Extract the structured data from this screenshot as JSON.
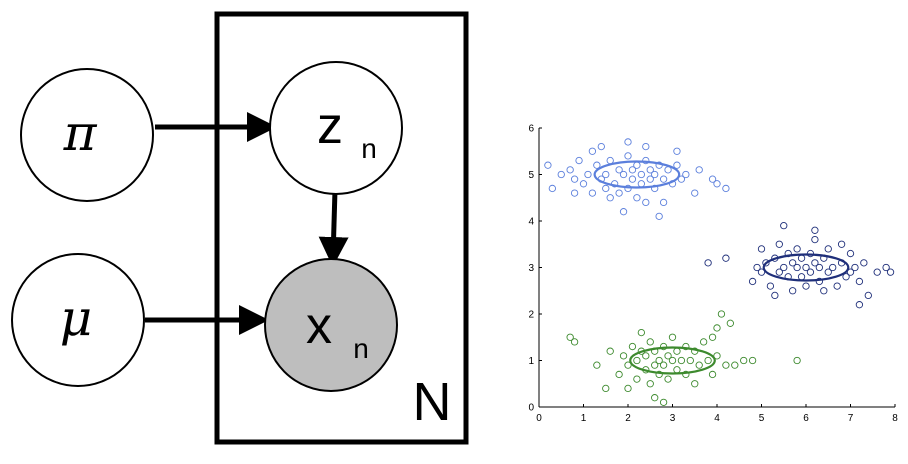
{
  "diagram": {
    "nodes": {
      "pi": {
        "symbol": "π"
      },
      "mu": {
        "symbol": "μ"
      },
      "z": {
        "base": "z",
        "subscript": "n"
      },
      "x": {
        "base": "x",
        "subscript": "n"
      }
    },
    "plate_label": "N",
    "colors": {
      "observed_fill": "#bebebe",
      "stroke": "#000000"
    }
  },
  "chart_data": {
    "type": "scatter",
    "title": "",
    "xlabel": "",
    "ylabel": "",
    "xlim": [
      0,
      8
    ],
    "ylim": [
      0,
      6
    ],
    "xticks": [
      "0",
      "1",
      "2",
      "3",
      "4",
      "5",
      "6",
      "7",
      "8"
    ],
    "yticks": [
      "0",
      "1",
      "2",
      "3",
      "4",
      "5",
      "6"
    ],
    "grid": false,
    "series": [
      {
        "color": "#5b7fdc",
        "ellipse": {
          "cx": 2.2,
          "cy": 5.0,
          "rx": 0.95,
          "ry": 0.28
        },
        "points": [
          [
            0.2,
            5.2
          ],
          [
            0.3,
            4.7
          ],
          [
            0.5,
            5.0
          ],
          [
            0.7,
            5.1
          ],
          [
            0.8,
            4.9
          ],
          [
            0.9,
            5.3
          ],
          [
            1.0,
            4.8
          ],
          [
            1.1,
            5.0
          ],
          [
            1.2,
            4.6
          ],
          [
            1.3,
            5.2
          ],
          [
            1.4,
            4.9
          ],
          [
            1.5,
            5.0
          ],
          [
            1.5,
            4.7
          ],
          [
            1.6,
            5.3
          ],
          [
            1.7,
            4.8
          ],
          [
            1.8,
            5.1
          ],
          [
            1.8,
            4.6
          ],
          [
            1.9,
            5.0
          ],
          [
            2.0,
            5.4
          ],
          [
            2.0,
            4.7
          ],
          [
            2.1,
            5.1
          ],
          [
            2.1,
            4.9
          ],
          [
            2.2,
            5.2
          ],
          [
            2.2,
            4.5
          ],
          [
            2.3,
            5.0
          ],
          [
            2.3,
            4.8
          ],
          [
            2.4,
            5.3
          ],
          [
            2.4,
            4.4
          ],
          [
            2.5,
            5.1
          ],
          [
            2.5,
            4.9
          ],
          [
            2.6,
            5.0
          ],
          [
            2.6,
            4.7
          ],
          [
            2.7,
            5.2
          ],
          [
            2.8,
            4.9
          ],
          [
            2.8,
            4.4
          ],
          [
            2.9,
            5.1
          ],
          [
            3.0,
            4.8
          ],
          [
            3.1,
            5.2
          ],
          [
            3.2,
            4.9
          ],
          [
            3.3,
            5.0
          ],
          [
            3.5,
            4.6
          ],
          [
            1.4,
            5.6
          ],
          [
            2.0,
            5.7
          ],
          [
            3.1,
            5.5
          ],
          [
            2.7,
            4.1
          ],
          [
            1.9,
            4.2
          ],
          [
            4.0,
            4.8
          ],
          [
            4.2,
            4.7
          ],
          [
            3.9,
            4.9
          ],
          [
            1.2,
            5.5
          ],
          [
            0.8,
            4.6
          ],
          [
            2.4,
            5.6
          ],
          [
            1.6,
            4.5
          ],
          [
            3.6,
            5.1
          ]
        ]
      },
      {
        "color": "#1f2f7a",
        "ellipse": {
          "cx": 6.0,
          "cy": 3.0,
          "rx": 0.95,
          "ry": 0.28
        },
        "points": [
          [
            3.8,
            3.1
          ],
          [
            4.2,
            3.2
          ],
          [
            4.8,
            2.7
          ],
          [
            5.0,
            3.4
          ],
          [
            5.0,
            2.9
          ],
          [
            5.1,
            3.1
          ],
          [
            5.2,
            2.6
          ],
          [
            5.3,
            3.2
          ],
          [
            5.4,
            2.9
          ],
          [
            5.4,
            3.5
          ],
          [
            5.5,
            3.0
          ],
          [
            5.6,
            2.8
          ],
          [
            5.6,
            3.3
          ],
          [
            5.7,
            3.1
          ],
          [
            5.7,
            2.5
          ],
          [
            5.8,
            3.0
          ],
          [
            5.8,
            3.4
          ],
          [
            5.9,
            2.8
          ],
          [
            5.9,
            3.2
          ],
          [
            6.0,
            3.0
          ],
          [
            6.0,
            2.6
          ],
          [
            6.1,
            3.3
          ],
          [
            6.1,
            2.9
          ],
          [
            6.2,
            3.1
          ],
          [
            6.2,
            3.6
          ],
          [
            6.3,
            2.7
          ],
          [
            6.3,
            3.0
          ],
          [
            6.4,
            3.2
          ],
          [
            6.5,
            2.9
          ],
          [
            6.5,
            3.4
          ],
          [
            6.6,
            3.0
          ],
          [
            6.7,
            2.6
          ],
          [
            6.8,
            3.1
          ],
          [
            6.9,
            2.8
          ],
          [
            7.0,
            3.3
          ],
          [
            7.0,
            2.9
          ],
          [
            7.1,
            3.0
          ],
          [
            7.2,
            2.7
          ],
          [
            7.3,
            3.1
          ],
          [
            7.4,
            2.4
          ],
          [
            7.6,
            2.9
          ],
          [
            7.8,
            3.0
          ],
          [
            7.9,
            2.9
          ],
          [
            5.5,
            3.9
          ],
          [
            6.2,
            3.8
          ],
          [
            7.2,
            2.2
          ],
          [
            5.3,
            2.4
          ],
          [
            6.8,
            3.5
          ],
          [
            4.9,
            3.0
          ],
          [
            6.4,
            2.5
          ]
        ]
      },
      {
        "color": "#3d8a2e",
        "ellipse": {
          "cx": 3.0,
          "cy": 1.0,
          "rx": 0.95,
          "ry": 0.28
        },
        "points": [
          [
            0.7,
            1.5
          ],
          [
            0.8,
            1.4
          ],
          [
            1.3,
            0.9
          ],
          [
            1.6,
            1.2
          ],
          [
            1.8,
            0.7
          ],
          [
            1.9,
            1.1
          ],
          [
            2.0,
            0.9
          ],
          [
            2.1,
            1.3
          ],
          [
            2.2,
            0.6
          ],
          [
            2.2,
            1.0
          ],
          [
            2.3,
            1.2
          ],
          [
            2.4,
            0.8
          ],
          [
            2.4,
            1.1
          ],
          [
            2.5,
            0.5
          ],
          [
            2.5,
            1.4
          ],
          [
            2.6,
            0.9
          ],
          [
            2.6,
            1.2
          ],
          [
            2.7,
            1.0
          ],
          [
            2.7,
            0.7
          ],
          [
            2.8,
            1.3
          ],
          [
            2.8,
            0.9
          ],
          [
            2.9,
            1.1
          ],
          [
            2.9,
            0.6
          ],
          [
            3.0,
            1.0
          ],
          [
            3.0,
            1.5
          ],
          [
            3.1,
            0.8
          ],
          [
            3.1,
            1.2
          ],
          [
            3.2,
            1.0
          ],
          [
            3.3,
            0.7
          ],
          [
            3.3,
            1.3
          ],
          [
            3.4,
            1.0
          ],
          [
            3.5,
            0.5
          ],
          [
            3.5,
            1.2
          ],
          [
            3.6,
            0.9
          ],
          [
            3.7,
            1.4
          ],
          [
            3.8,
            1.0
          ],
          [
            3.9,
            0.7
          ],
          [
            4.0,
            1.1
          ],
          [
            4.0,
            1.7
          ],
          [
            4.2,
            0.9
          ],
          [
            4.1,
            2.0
          ],
          [
            4.3,
            1.8
          ],
          [
            4.4,
            0.9
          ],
          [
            4.6,
            1.0
          ],
          [
            4.8,
            1.0
          ],
          [
            5.8,
            1.0
          ],
          [
            2.6,
            0.2
          ],
          [
            2.8,
            0.1
          ],
          [
            2.0,
            0.4
          ],
          [
            3.9,
            1.5
          ],
          [
            2.3,
            1.6
          ],
          [
            1.5,
            0.4
          ]
        ]
      }
    ]
  }
}
